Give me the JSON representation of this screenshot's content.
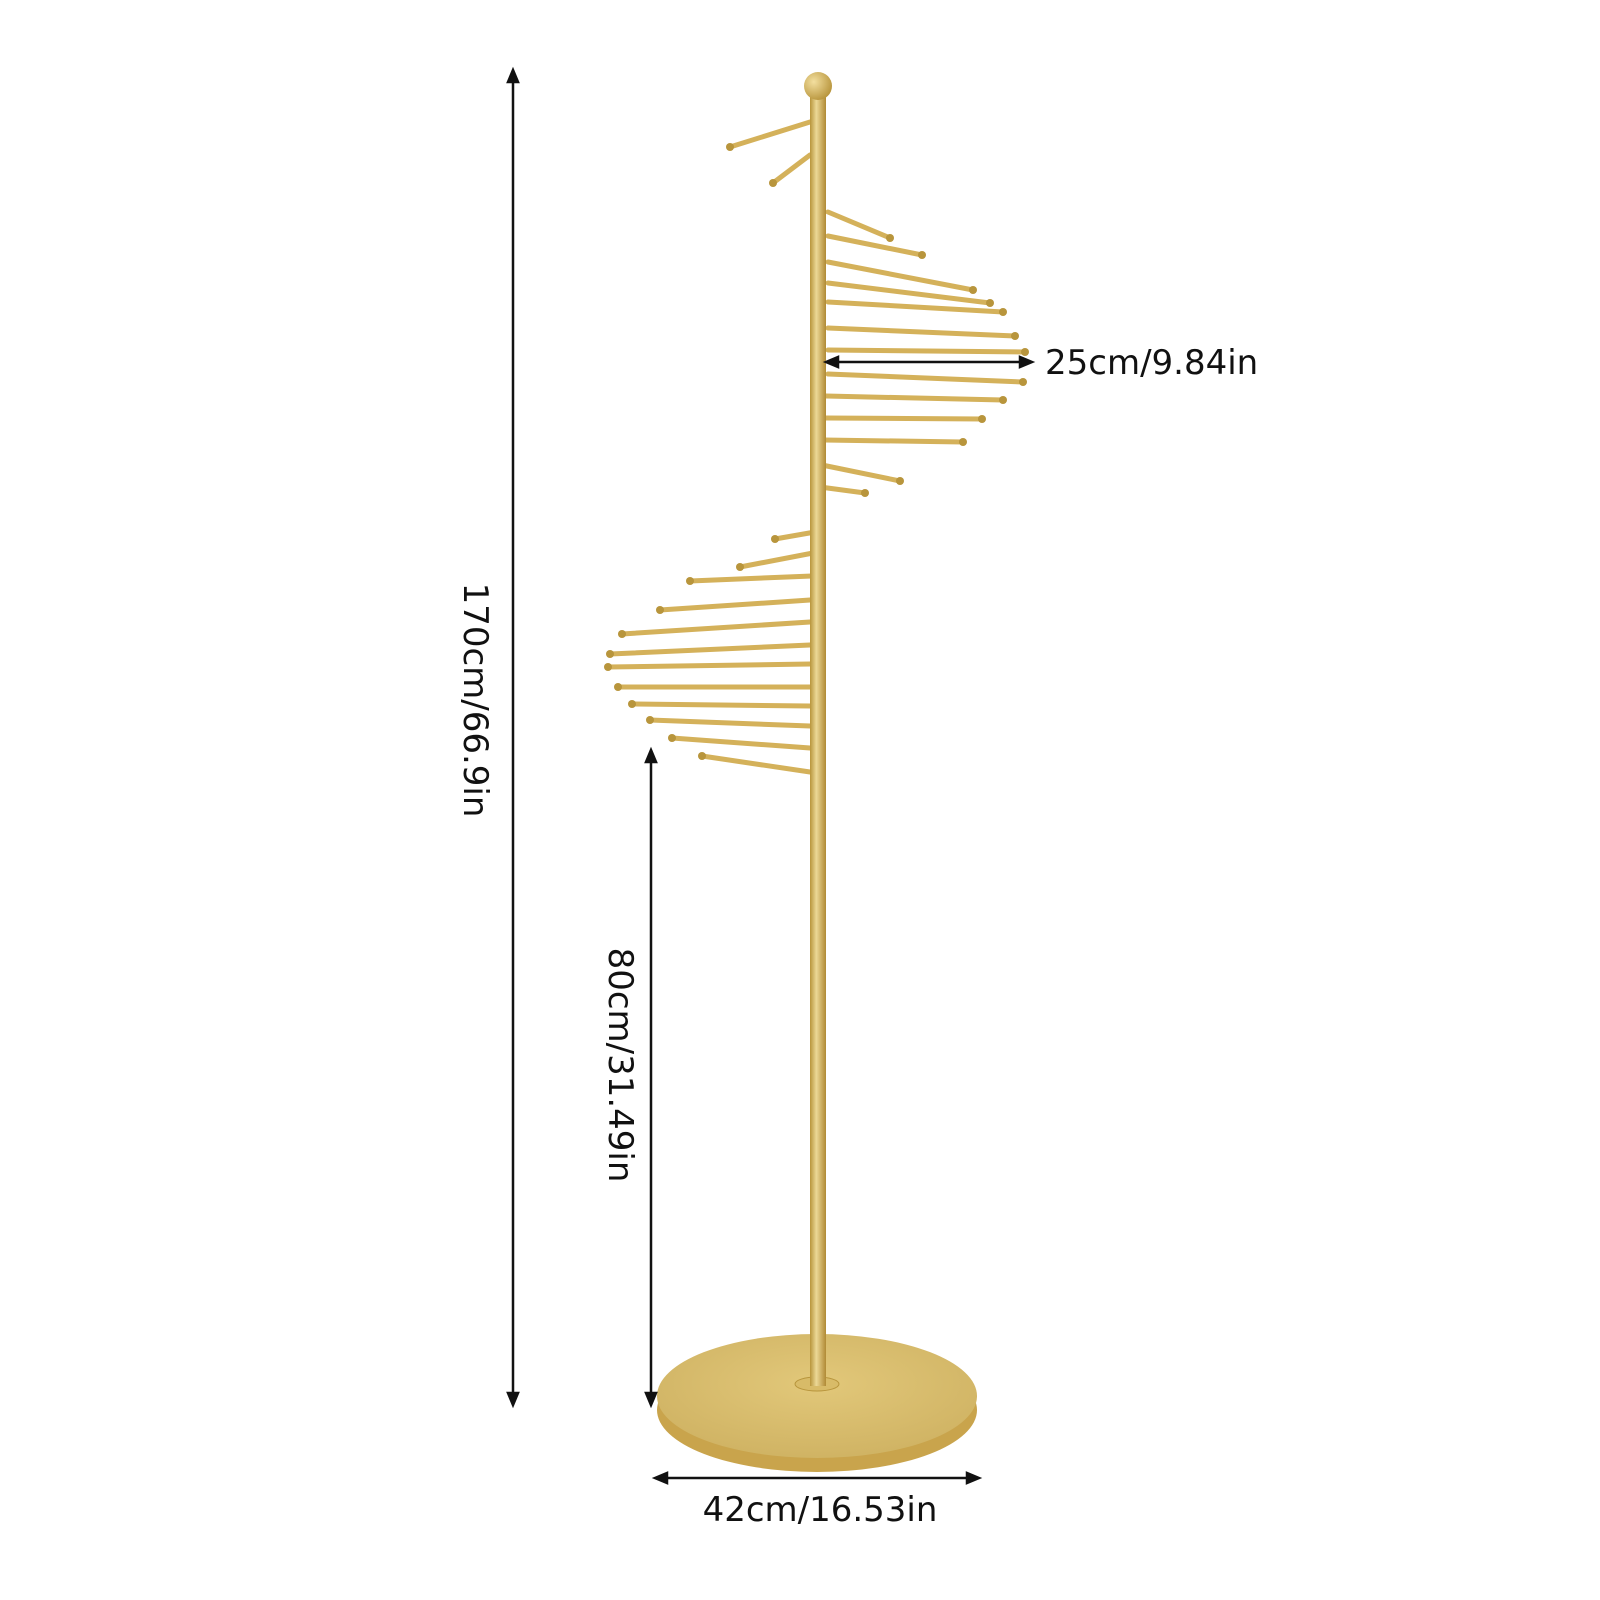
{
  "dimensions": {
    "total_height": "170cm/66.9in",
    "lower_height": "80cm/31.49in",
    "arm_length": "25cm/9.84in",
    "base_diameter": "42cm/16.53in"
  },
  "colors": {
    "gold": "#d4b15a",
    "gold_dark": "#b8953c",
    "gold_light": "#e8d08a",
    "dimension_line": "#111111",
    "background": "#ffffff"
  }
}
